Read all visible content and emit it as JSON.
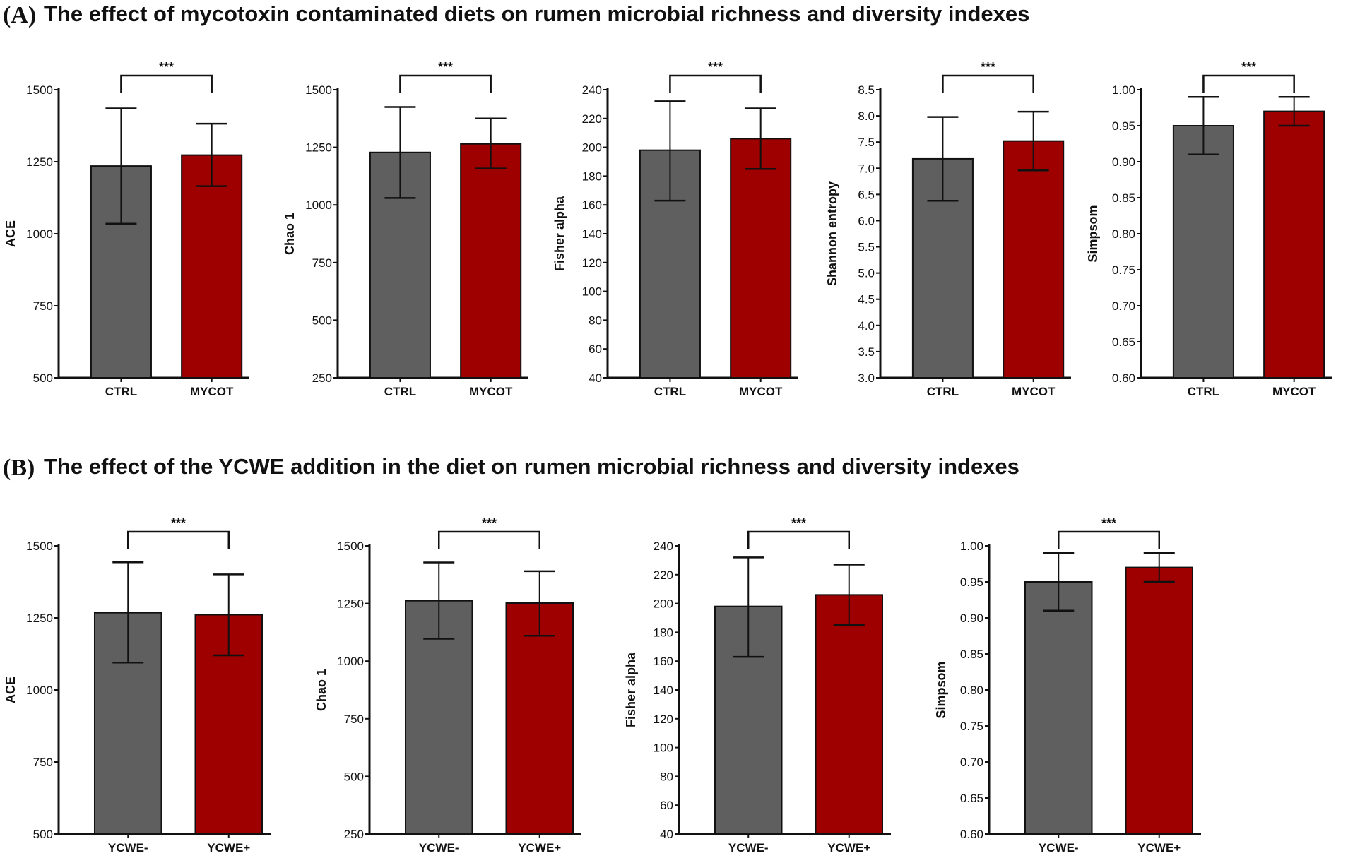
{
  "panels": [
    {
      "label": "(A)",
      "title": "The effect of mycotoxin contaminated diets on rumen microbial richness and diversity indexes"
    },
    {
      "label": "(B)",
      "title": "The effect of the YCWE addition in the diet on rumen microbial richness and diversity indexes"
    }
  ],
  "colors": {
    "control": "#5f5f5f",
    "treatment": "#9e0000",
    "axis": "#111111"
  },
  "chart_data": [
    {
      "type": "bar",
      "panel": 0,
      "ylabel": "ACE",
      "categories": [
        "CTRL",
        "MYCOT"
      ],
      "values": [
        1235,
        1273
      ],
      "error_low": [
        1035,
        1165
      ],
      "error_high": [
        1435,
        1382
      ],
      "ylim": [
        500,
        1500
      ],
      "yticks": [
        "500",
        "750",
        "1000",
        "1250",
        "1500"
      ],
      "significance": "***"
    },
    {
      "type": "bar",
      "panel": 0,
      "ylabel": "Chao 1",
      "categories": [
        "CTRL",
        "MYCOT"
      ],
      "values": [
        1228,
        1265
      ],
      "error_low": [
        1030,
        1158
      ],
      "error_high": [
        1425,
        1375
      ],
      "ylim": [
        250,
        1500
      ],
      "yticks": [
        "250",
        "500",
        "750",
        "1000",
        "1250",
        "1500"
      ],
      "significance": "***"
    },
    {
      "type": "bar",
      "panel": 0,
      "ylabel": "Fisher alpha",
      "categories": [
        "CTRL",
        "MYCOT"
      ],
      "values": [
        198,
        206
      ],
      "error_low": [
        163,
        185
      ],
      "error_high": [
        232,
        227
      ],
      "ylim": [
        40,
        240
      ],
      "yticks": [
        "40",
        "60",
        "80",
        "100",
        "120",
        "140",
        "160",
        "180",
        "200",
        "220",
        "240"
      ],
      "significance": "***"
    },
    {
      "type": "bar",
      "panel": 0,
      "ylabel": "Shannon entropy",
      "categories": [
        "CTRL",
        "MYCOT"
      ],
      "values": [
        7.18,
        7.52
      ],
      "error_low": [
        6.38,
        6.96
      ],
      "error_high": [
        7.98,
        8.08
      ],
      "ylim": [
        3.0,
        8.5
      ],
      "yticks": [
        "3.0",
        "3.5",
        "4.0",
        "4.5",
        "5.0",
        "5.5",
        "6.0",
        "6.5",
        "7.0",
        "7.5",
        "8.0",
        "8.5"
      ],
      "significance": "***"
    },
    {
      "type": "bar",
      "panel": 0,
      "ylabel": "Simpsom",
      "categories": [
        "CTRL",
        "MYCOT"
      ],
      "values": [
        0.95,
        0.97
      ],
      "error_low": [
        0.91,
        0.95
      ],
      "error_high": [
        0.99,
        0.99
      ],
      "ylim": [
        0.6,
        1.0
      ],
      "yticks": [
        "0.60",
        "0.65",
        "0.70",
        "0.75",
        "0.80",
        "0.85",
        "0.90",
        "0.95",
        "1.00"
      ],
      "significance": "***"
    },
    {
      "type": "bar",
      "panel": 1,
      "ylabel": "ACE",
      "categories": [
        "YCWE-",
        "YCWE+"
      ],
      "values": [
        1268,
        1261
      ],
      "error_low": [
        1095,
        1120
      ],
      "error_high": [
        1443,
        1401
      ],
      "ylim": [
        500,
        1500
      ],
      "yticks": [
        "500",
        "750",
        "1000",
        "1250",
        "1500"
      ],
      "significance": "***"
    },
    {
      "type": "bar",
      "panel": 1,
      "ylabel": "Chao 1",
      "categories": [
        "YCWE-",
        "YCWE+"
      ],
      "values": [
        1262,
        1252
      ],
      "error_low": [
        1097,
        1110
      ],
      "error_high": [
        1428,
        1390
      ],
      "ylim": [
        250,
        1500
      ],
      "yticks": [
        "250",
        "500",
        "750",
        "1000",
        "1250",
        "1500"
      ],
      "significance": "***"
    },
    {
      "type": "bar",
      "panel": 1,
      "ylabel": "Fisher alpha",
      "categories": [
        "YCWE-",
        "YCWE+"
      ],
      "values": [
        198,
        206
      ],
      "error_low": [
        163,
        185
      ],
      "error_high": [
        232,
        227
      ],
      "ylim": [
        40,
        240
      ],
      "yticks": [
        "40",
        "60",
        "80",
        "100",
        "120",
        "140",
        "160",
        "180",
        "200",
        "220",
        "240"
      ],
      "significance": "***"
    },
    {
      "type": "bar",
      "panel": 1,
      "ylabel": "Simpsom",
      "categories": [
        "YCWE-",
        "YCWE+"
      ],
      "values": [
        0.95,
        0.97
      ],
      "error_low": [
        0.91,
        0.95
      ],
      "error_high": [
        0.99,
        0.99
      ],
      "ylim": [
        0.6,
        1.0
      ],
      "yticks": [
        "0.60",
        "0.65",
        "0.70",
        "0.75",
        "0.80",
        "0.85",
        "0.90",
        "0.95",
        "1.00"
      ],
      "significance": "***"
    }
  ]
}
